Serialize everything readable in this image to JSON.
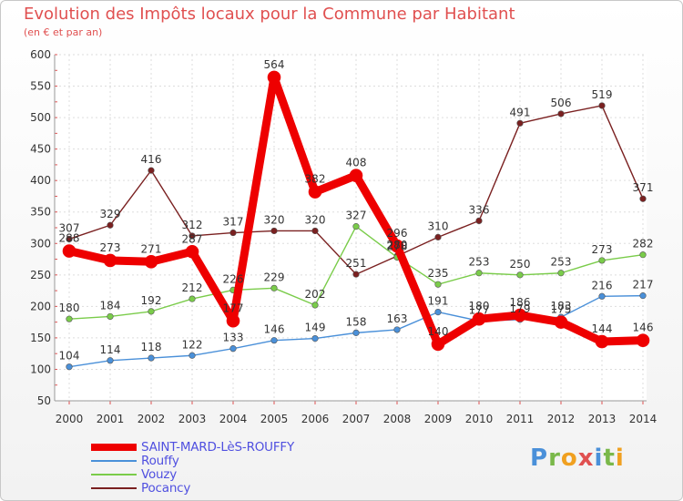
{
  "title": "Evolution des Impôts locaux pour la Commune par Habitant",
  "subtitle": "(en € et par an)",
  "logo_text": "Proxiti",
  "chart_data": {
    "type": "line",
    "title": "Evolution des Impôts locaux pour la Commune par Habitant",
    "subtitle": "(en € et par an)",
    "x": [
      2000,
      2001,
      2002,
      2003,
      2004,
      2005,
      2006,
      2007,
      2008,
      2009,
      2010,
      2011,
      2012,
      2013,
      2014
    ],
    "ylim": [
      50,
      600
    ],
    "yticks": [
      50,
      100,
      150,
      200,
      250,
      300,
      350,
      400,
      450,
      500,
      550,
      600
    ],
    "grid": true,
    "legend": "bottom-left",
    "series": [
      {
        "name": "SAINT-MARD-LèS-ROUFFY",
        "color": "#ee0000",
        "values": [
          288,
          273,
          271,
          287,
          177,
          564,
          382,
          408,
          296,
          140,
          180,
          186,
          175,
          144,
          146
        ],
        "labels": [
          "288",
          "273",
          "271",
          "287",
          "177",
          "564",
          "382",
          "408",
          "296",
          "140",
          "180",
          "186",
          "175",
          "144",
          "146"
        ]
      },
      {
        "name": "Rouffy",
        "color": "#4a90d9",
        "values": [
          104,
          114,
          118,
          122,
          133,
          146,
          149,
          158,
          163,
          191,
          177,
          179,
          183,
          216,
          217
        ],
        "labels": [
          "104",
          "114",
          "118",
          "122",
          "133",
          "146",
          "149",
          "158",
          "163",
          "191",
          "177",
          "179",
          "183",
          "216",
          "217"
        ]
      },
      {
        "name": "Vouzy",
        "color": "#7acc4a",
        "values": [
          180,
          184,
          192,
          212,
          226,
          229,
          202,
          327,
          278,
          235,
          253,
          250,
          253,
          273,
          282
        ],
        "labels": [
          "180",
          "184",
          "192",
          "212",
          "226",
          "229",
          "202",
          "327",
          "278",
          "235",
          "253",
          "250",
          "253",
          "273",
          "282"
        ]
      },
      {
        "name": "Pocancy",
        "color": "#7a2020",
        "values": [
          307,
          329,
          416,
          312,
          317,
          320,
          320,
          251,
          280,
          310,
          336,
          491,
          506,
          519,
          371
        ],
        "labels": [
          "307",
          "329",
          "416",
          "312",
          "317",
          "320",
          "320",
          "251",
          "280",
          "310",
          "336",
          "491",
          "506",
          "519",
          "371"
        ]
      }
    ]
  }
}
